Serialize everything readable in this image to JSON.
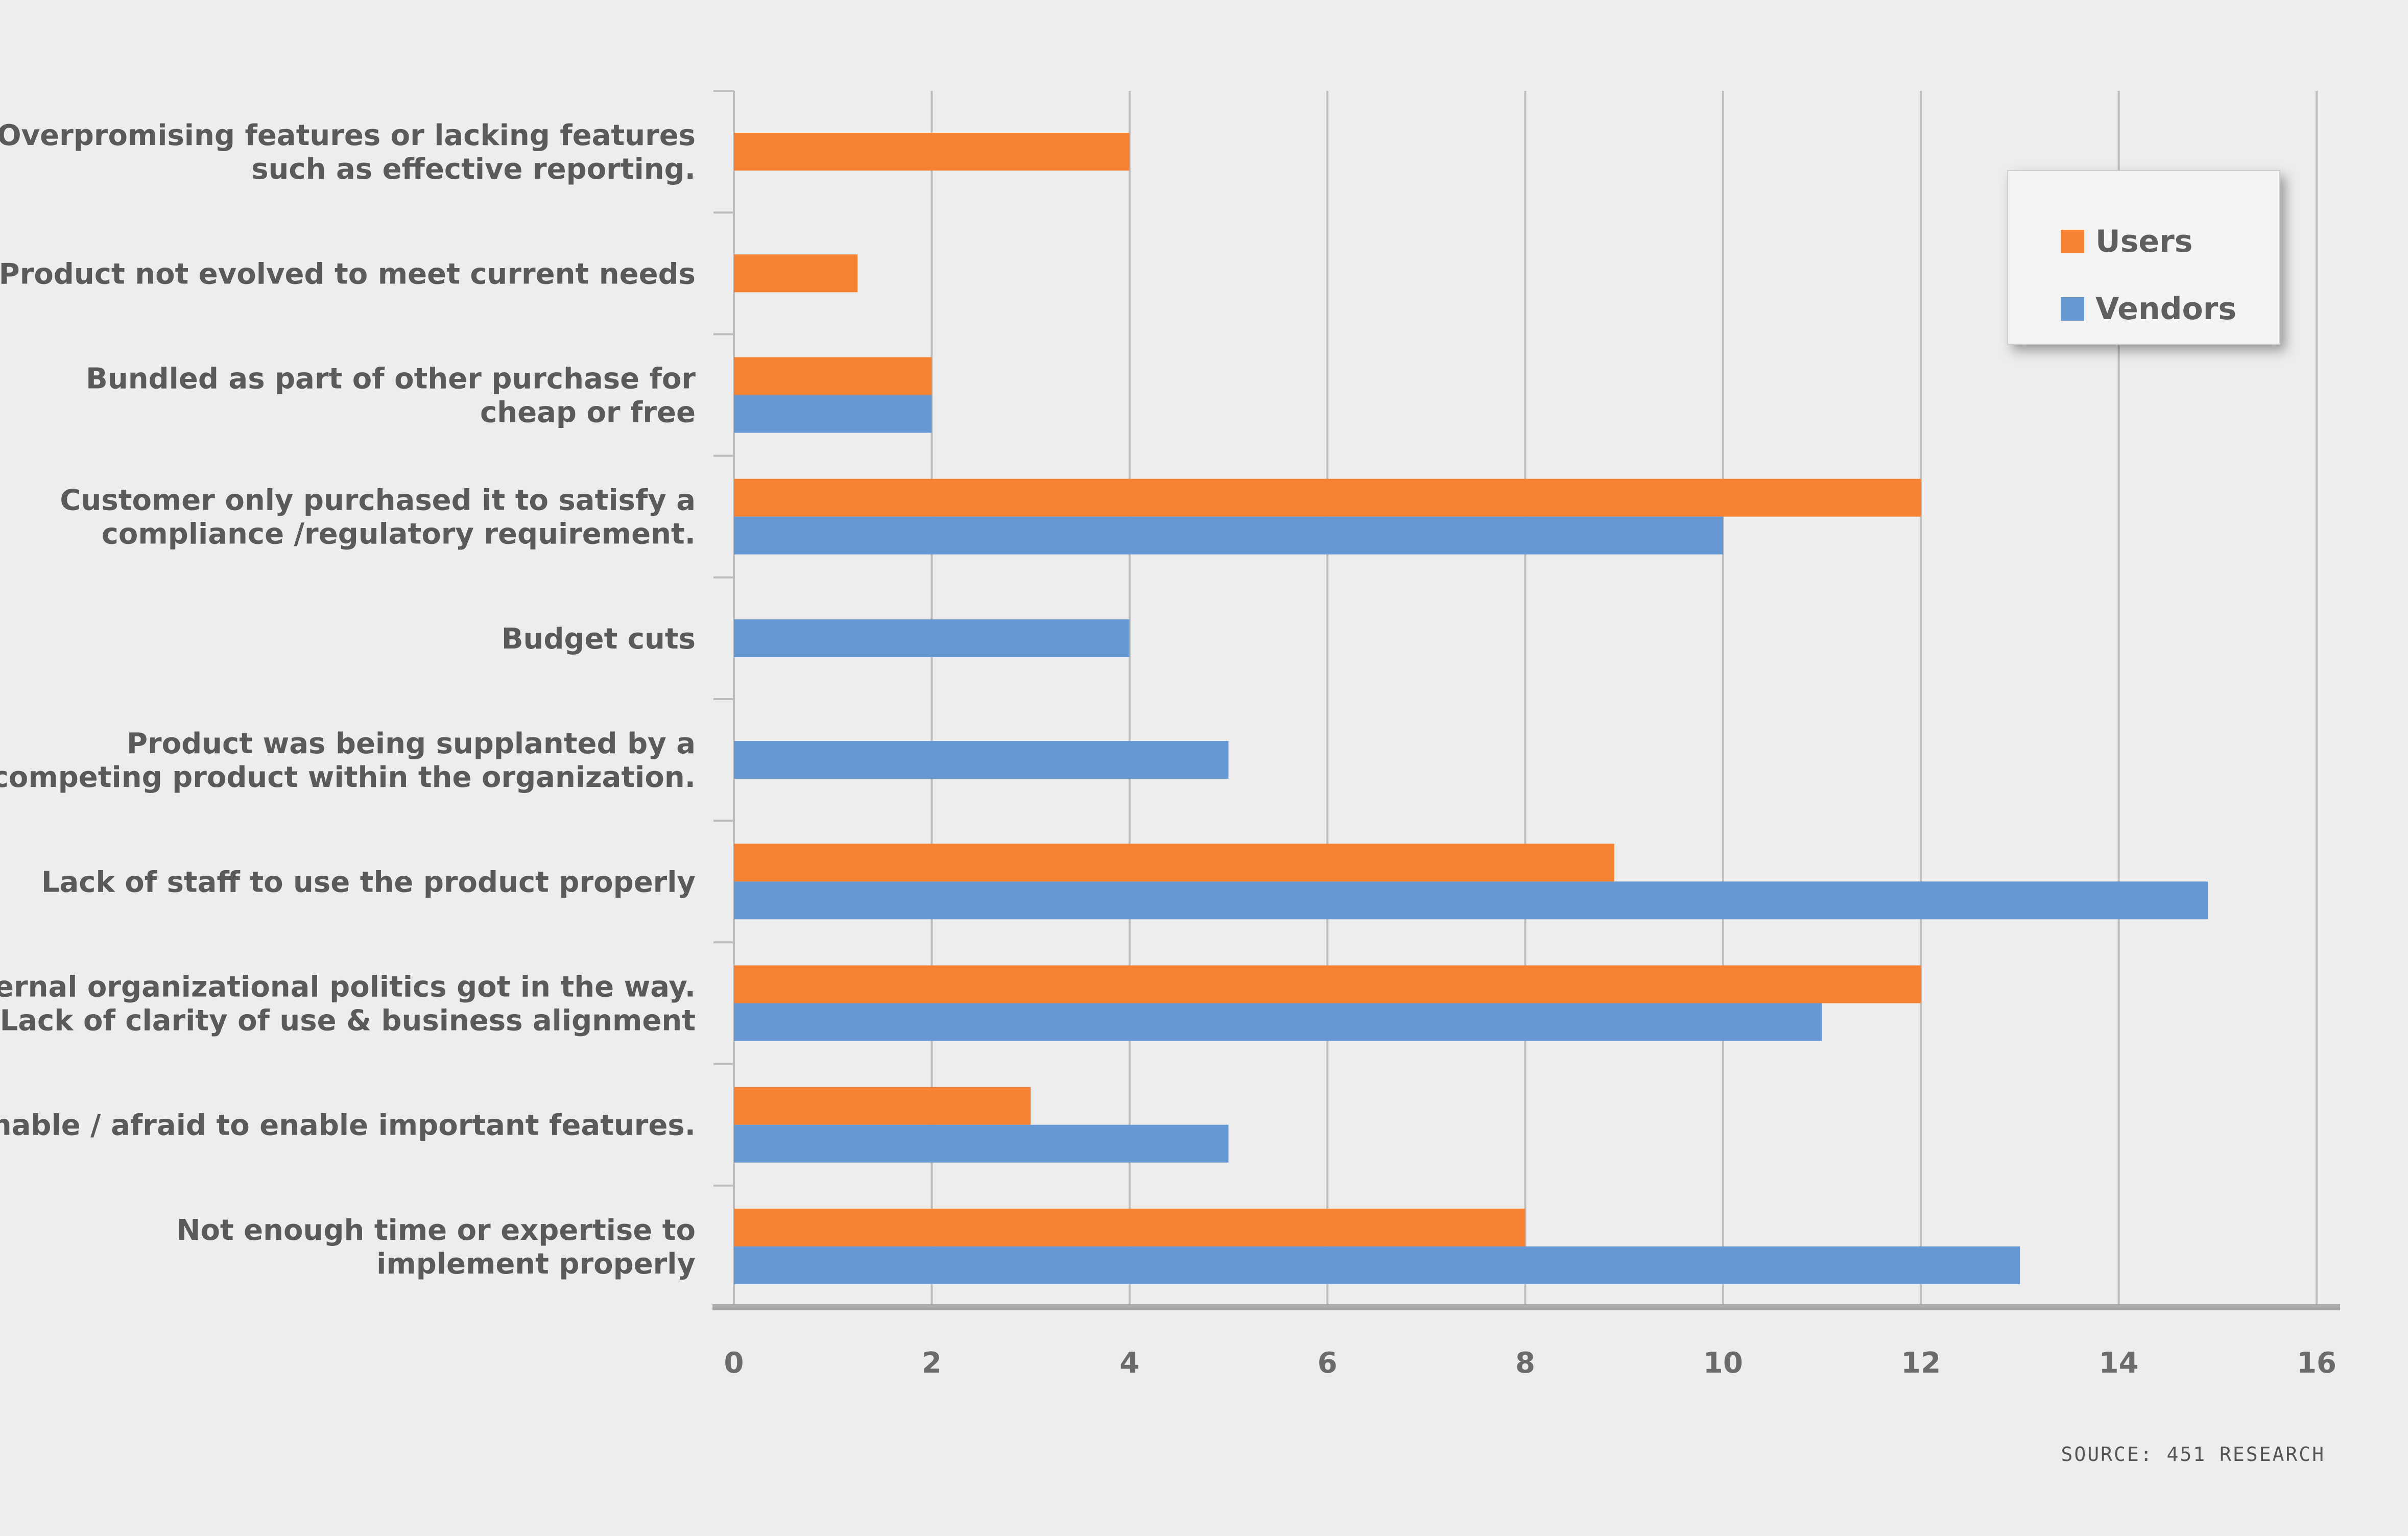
{
  "chart_data": {
    "type": "bar",
    "orientation": "horizontal",
    "categories": [
      [
        "Overpromising features or lacking features",
        "such as effective reporting."
      ],
      [
        "Product not evolved to meet current needs"
      ],
      [
        "Bundled as part of other purchase for",
        "cheap or free"
      ],
      [
        "Customer only purchased it to satisfy a",
        "compliance /regulatory requirement."
      ],
      [
        "Budget cuts"
      ],
      [
        "Product was being supplanted by a",
        "competing product within the organization."
      ],
      [
        "Lack of staff to use the product properly"
      ],
      [
        "Internal organizational politics got in the way.",
        "Lack of clarity of use & business alignment"
      ],
      [
        "Unable / afraid to enable important features."
      ],
      [
        "Not enough time or expertise to",
        "implement properly"
      ]
    ],
    "series": [
      {
        "name": "Users",
        "color": "#f58232",
        "values": [
          4,
          1.25,
          2,
          12,
          null,
          null,
          8.9,
          12,
          3,
          8
        ]
      },
      {
        "name": "Vendors",
        "color": "#6699d3",
        "values": [
          null,
          null,
          2,
          10,
          4,
          5,
          14.9,
          11,
          5,
          13
        ]
      }
    ],
    "xlim": [
      0,
      16
    ],
    "xticks": [
      0,
      2,
      4,
      6,
      8,
      10,
      12,
      14,
      16
    ],
    "grid": true,
    "legend_position": "top-right",
    "source": "SOURCE: 451 RESEARCH"
  }
}
